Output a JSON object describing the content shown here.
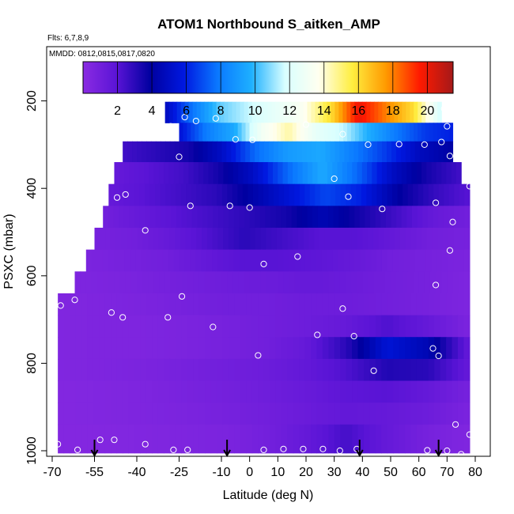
{
  "chart_data": {
    "type": "heatmap",
    "title": "ATOM1 Northbound S_aitken_AMP",
    "annotations": [
      "Flts: 6,7,8,9",
      "MMDD: 0812,0815,0817,0820"
    ],
    "xlabel": "Latitude (deg N)",
    "ylabel": "PSXC (mbar)",
    "xlim": [
      -70,
      80
    ],
    "ylim": [
      1000,
      0
    ],
    "x_ticks": [
      "-70",
      "-55",
      "-40",
      "-25",
      "-10",
      "0",
      "10",
      "20",
      "30",
      "40",
      "50",
      "60",
      "70",
      "80"
    ],
    "x_tick_values": [
      -70,
      -55,
      -40,
      -25,
      -10,
      0,
      10,
      20,
      30,
      40,
      50,
      60,
      70,
      80
    ],
    "y_ticks": [
      "200",
      "400",
      "600",
      "800",
      "1000"
    ],
    "y_tick_values": [
      200,
      400,
      600,
      800,
      1000
    ],
    "colorbar": {
      "ticks": [
        "2",
        "4",
        "6",
        "8",
        "10",
        "12",
        "14",
        "16",
        "18",
        "20"
      ],
      "tick_values": [
        2,
        4,
        6,
        8,
        10,
        12,
        14,
        16,
        18,
        20
      ],
      "range": [
        0,
        21.5
      ],
      "stops": [
        "#8a2be2",
        "#5a14d6",
        "#0000a0",
        "#0018e0",
        "#0a78ff",
        "#1eb0ff",
        "#d8ffff",
        "#fffff0",
        "#ffee40",
        "#ff9a00",
        "#ff1a00",
        "#a51919"
      ]
    },
    "flight_markers_lat": [
      -55,
      -8,
      39,
      67
    ],
    "levels": [
      {
        "p": 230,
        "lat": [
          -30,
          68
        ],
        "values": [
          4.8,
          7.8,
          10.5,
          11.5,
          12.5,
          13.5,
          16.0,
          20.0,
          18.0,
          16.0,
          11.5
        ]
      },
      {
        "p": 270,
        "lat": [
          -25,
          72
        ],
        "values": [
          5.5,
          8.0,
          9.5,
          13.0,
          14.5,
          12.5,
          11.5,
          9.5,
          7.8,
          6.5,
          6.0
        ]
      },
      {
        "p": 315,
        "lat": [
          -45,
          72
        ],
        "values": [
          2.5,
          3.0,
          3.5,
          5.0,
          7.5,
          9.0,
          9.5,
          8.0,
          6.5,
          4.8,
          4.0
        ]
      },
      {
        "p": 365,
        "lat": [
          -48,
          75
        ],
        "values": [
          1.5,
          2.0,
          2.5,
          3.5,
          5.0,
          7.5,
          9.5,
          7.5,
          5.0,
          3.5,
          2.5
        ]
      },
      {
        "p": 415,
        "lat": [
          -50,
          78
        ],
        "values": [
          1.5,
          2.0,
          2.5,
          3.0,
          4.2,
          5.5,
          6.8,
          6.0,
          4.0,
          2.8,
          2.0
        ]
      },
      {
        "p": 465,
        "lat": [
          -52,
          78
        ],
        "values": [
          1.0,
          1.5,
          2.0,
          2.5,
          3.0,
          3.5,
          4.5,
          3.5,
          2.5,
          1.5,
          1.0
        ]
      },
      {
        "p": 515,
        "lat": [
          -55,
          78
        ],
        "values": [
          0.8,
          1.0,
          1.5,
          2.2,
          3.0,
          2.5,
          2.0,
          2.0,
          1.5,
          1.0,
          0.8
        ]
      },
      {
        "p": 565,
        "lat": [
          -58,
          78
        ],
        "values": [
          0.6,
          0.8,
          1.0,
          1.5,
          2.0,
          2.0,
          1.8,
          1.5,
          1.0,
          0.8,
          0.6
        ]
      },
      {
        "p": 615,
        "lat": [
          -62,
          78
        ],
        "values": [
          0.5,
          0.6,
          0.8,
          1.0,
          1.2,
          1.3,
          1.5,
          1.3,
          1.0,
          0.8,
          0.5
        ]
      },
      {
        "p": 665,
        "lat": [
          -68,
          78
        ],
        "values": [
          0.4,
          0.5,
          0.6,
          0.8,
          1.0,
          1.0,
          1.2,
          1.2,
          1.0,
          0.8,
          0.5
        ]
      },
      {
        "p": 715,
        "lat": [
          -68,
          78
        ],
        "values": [
          0.4,
          0.5,
          0.5,
          0.6,
          0.8,
          1.0,
          1.2,
          1.5,
          2.2,
          1.5,
          0.6
        ]
      },
      {
        "p": 765,
        "lat": [
          -68,
          78
        ],
        "values": [
          0.4,
          0.5,
          0.5,
          0.6,
          0.8,
          1.0,
          1.5,
          3.0,
          5.5,
          4.5,
          1.5
        ]
      },
      {
        "p": 815,
        "lat": [
          -68,
          78
        ],
        "values": [
          0.4,
          0.5,
          0.6,
          0.8,
          1.0,
          1.2,
          1.6,
          2.2,
          3.2,
          3.0,
          1.5
        ]
      },
      {
        "p": 865,
        "lat": [
          -68,
          78
        ],
        "values": [
          0.3,
          0.4,
          0.5,
          0.7,
          0.9,
          1.1,
          1.4,
          1.8,
          2.0,
          1.5,
          0.8
        ]
      },
      {
        "p": 915,
        "lat": [
          -68,
          78
        ],
        "values": [
          0.3,
          0.4,
          0.5,
          0.6,
          0.8,
          1.0,
          1.3,
          1.6,
          1.5,
          1.2,
          0.6
        ]
      },
      {
        "p": 965,
        "lat": [
          -68,
          78
        ],
        "values": [
          0.3,
          0.3,
          0.4,
          0.5,
          0.6,
          0.9,
          1.5,
          2.4,
          1.5,
          0.8,
          0.4
        ]
      }
    ],
    "samples": [
      [
        -28,
        258
      ],
      [
        -23,
        237
      ],
      [
        -19,
        246
      ],
      [
        -12,
        240
      ],
      [
        -5,
        288
      ],
      [
        1,
        289
      ],
      [
        20,
        254
      ],
      [
        33,
        276
      ],
      [
        -43,
        271
      ],
      [
        -38,
        272
      ],
      [
        -53,
        298
      ],
      [
        -25,
        328
      ],
      [
        42,
        300
      ],
      [
        53,
        299
      ],
      [
        62,
        300
      ],
      [
        68,
        294
      ],
      [
        70,
        258
      ],
      [
        71,
        326
      ],
      [
        69,
        218
      ],
      [
        30,
        378
      ],
      [
        35,
        419
      ],
      [
        -47,
        421
      ],
      [
        -44,
        414
      ],
      [
        -21,
        440
      ],
      [
        -7,
        440
      ],
      [
        0,
        444
      ],
      [
        47,
        447
      ],
      [
        66,
        433
      ],
      [
        78,
        395
      ],
      [
        72,
        477
      ],
      [
        -37,
        496
      ],
      [
        17,
        556
      ],
      [
        5,
        573
      ],
      [
        71,
        542
      ],
      [
        66,
        621
      ],
      [
        -67,
        668
      ],
      [
        -62,
        655
      ],
      [
        -49,
        684
      ],
      [
        -45,
        695
      ],
      [
        -29,
        695
      ],
      [
        -24,
        647
      ],
      [
        -13,
        717
      ],
      [
        33,
        675
      ],
      [
        24,
        735
      ],
      [
        37,
        738
      ],
      [
        44,
        817
      ],
      [
        3,
        782
      ],
      [
        65,
        766
      ],
      [
        67,
        783
      ],
      [
        73,
        940
      ],
      [
        75,
        1008
      ],
      [
        78,
        963
      ],
      [
        -68,
        985
      ],
      [
        -61,
        998
      ],
      [
        -53,
        975
      ],
      [
        -48,
        975
      ],
      [
        -37,
        985
      ],
      [
        -27,
        998
      ],
      [
        -22,
        998
      ],
      [
        5,
        998
      ],
      [
        12,
        996
      ],
      [
        19,
        996
      ],
      [
        26,
        996
      ],
      [
        32,
        1000
      ],
      [
        38,
        996
      ],
      [
        63,
        999
      ],
      [
        70,
        1000
      ]
    ]
  }
}
